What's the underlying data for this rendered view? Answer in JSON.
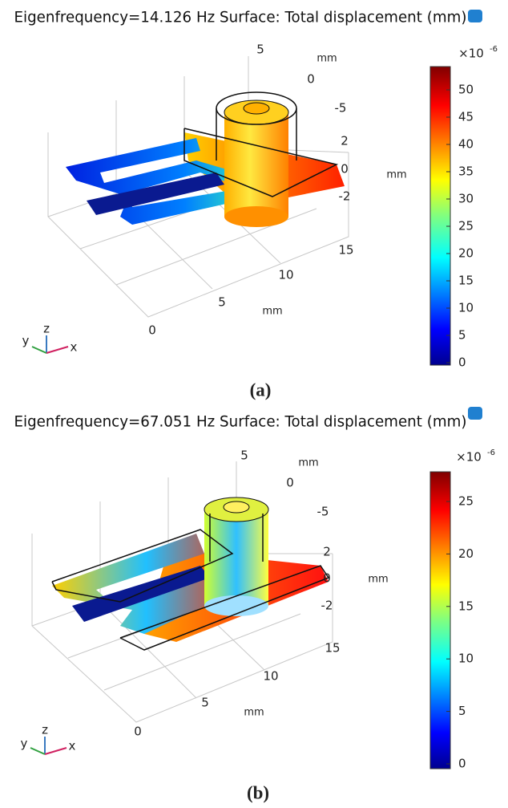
{
  "panels": [
    {
      "title": "Eigenfrequency=14.126 Hz Surface: Total displacement (mm)",
      "y_axis": {
        "ticks": [
          5,
          0,
          -5
        ],
        "unit": "mm"
      },
      "z_axis": {
        "ticks": [
          2,
          0,
          -2
        ],
        "unit": "mm"
      },
      "x_axis": {
        "ticks": [
          15,
          10,
          5,
          0
        ],
        "unit": "mm"
      },
      "triad": {
        "y": "y",
        "z": "z",
        "x": "x"
      },
      "colorbar": {
        "multiplier": "×10",
        "exponent": "-6",
        "ticks": [
          0,
          5,
          10,
          15,
          20,
          25,
          30,
          35,
          40,
          45,
          50
        ]
      },
      "caption": "(a)"
    },
    {
      "title": "Eigenfrequency=67.051 Hz Surface: Total displacement (mm)",
      "y_axis": {
        "ticks": [
          5,
          0,
          -5
        ],
        "unit": "mm"
      },
      "z_axis": {
        "ticks": [
          2,
          0,
          -2
        ],
        "unit": "mm"
      },
      "x_axis": {
        "ticks": [
          15,
          10,
          5,
          0
        ],
        "unit": "mm"
      },
      "triad": {
        "y": "y",
        "z": "z",
        "x": "x"
      },
      "colorbar": {
        "multiplier": "×10",
        "exponent": "-6",
        "ticks": [
          0,
          5,
          10,
          15,
          20,
          25
        ]
      },
      "caption": "(b)"
    }
  ]
}
